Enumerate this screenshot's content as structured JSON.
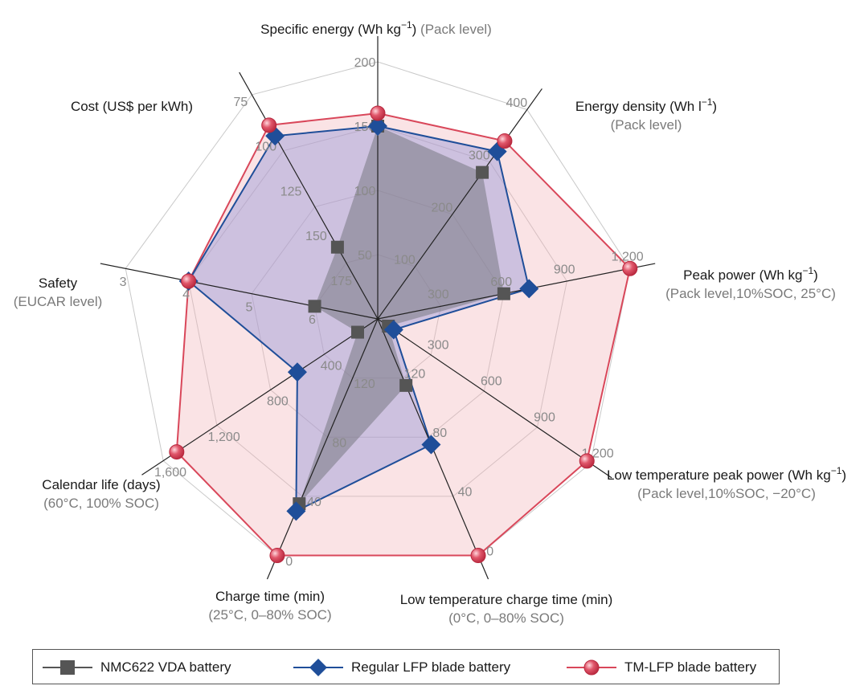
{
  "chart_data": {
    "type": "radar",
    "axes": [
      {
        "title": "Specific energy (Wh kg",
        "title_sup": "−1",
        "title_after": ")",
        "subtitle": "(Pack level)",
        "inline_sub": true,
        "ticks": [
          "50",
          "100",
          "150",
          "200"
        ],
        "range": [
          0,
          200
        ]
      },
      {
        "title": "Energy density (Wh l",
        "title_sup": "−1",
        "title_after": ")",
        "subtitle": "(Pack level)",
        "ticks": [
          "100",
          "200",
          "300",
          "400"
        ],
        "range": [
          0,
          400
        ]
      },
      {
        "title": "Peak power (Wh kg",
        "title_sup": "−1",
        "title_after": ")",
        "subtitle": "(Pack level,10%SOC, 25°C)",
        "ticks": [
          "300",
          "600",
          "900",
          "1,200"
        ],
        "range": [
          0,
          1200
        ]
      },
      {
        "title": "Low temperature peak power (Wh kg",
        "title_sup": "−1",
        "title_after": ")",
        "subtitle": "(Pack level,10%SOC, −20°C)",
        "ticks": [
          "300",
          "600",
          "900",
          "1,200"
        ],
        "range": [
          0,
          1200
        ]
      },
      {
        "title": "Low temperature charge time (min)",
        "title_sup": "",
        "title_after": "",
        "subtitle": "(0°C, 0–80% SOC)",
        "ticks": [
          "120",
          "80",
          "40",
          "0"
        ],
        "range": [
          160,
          0
        ]
      },
      {
        "title": "Charge time (min)",
        "title_sup": "",
        "title_after": "",
        "subtitle": "(25°C, 0–80% SOC)",
        "ticks": [
          "120",
          "80",
          "40",
          "0"
        ],
        "range": [
          160,
          0
        ]
      },
      {
        "title": "Calendar life (days)",
        "title_sup": "",
        "title_after": "",
        "subtitle": "(60°C, 100% SOC)",
        "ticks": [
          "400",
          "800",
          "1,200",
          "1,600"
        ],
        "range": [
          0,
          1600
        ]
      },
      {
        "title": "Safety",
        "title_sup": "",
        "title_after": "",
        "subtitle": "(EUCAR level)",
        "ticks": [
          "6",
          "5",
          "4",
          "3"
        ],
        "range": [
          7,
          3
        ]
      },
      {
        "title": "Cost (US$ per kWh)",
        "title_sup": "",
        "title_after": "",
        "subtitle": "",
        "ticks": [
          "175",
          "150",
          "125",
          "100",
          "75"
        ],
        "range": [
          200,
          75
        ]
      }
    ],
    "series": [
      {
        "name": "NMC622 VDA battery",
        "color": "#555555",
        "marker": "square",
        "values": [
          150,
          280,
          600,
          60,
          115,
          35,
          150,
          6,
          160
        ]
      },
      {
        "name": "Regular LFP blade battery",
        "color": "#1f4e99",
        "marker": "diamond",
        "values": [
          150,
          320,
          720,
          90,
          75,
          30,
          600,
          4,
          98
        ]
      },
      {
        "name": "TM-LFP blade battery",
        "color": "#d9475a",
        "marker": "circle",
        "values": [
          160,
          340,
          1200,
          1180,
          0,
          0,
          1500,
          4,
          92
        ]
      }
    ],
    "grid": true,
    "legend": "bottom"
  }
}
